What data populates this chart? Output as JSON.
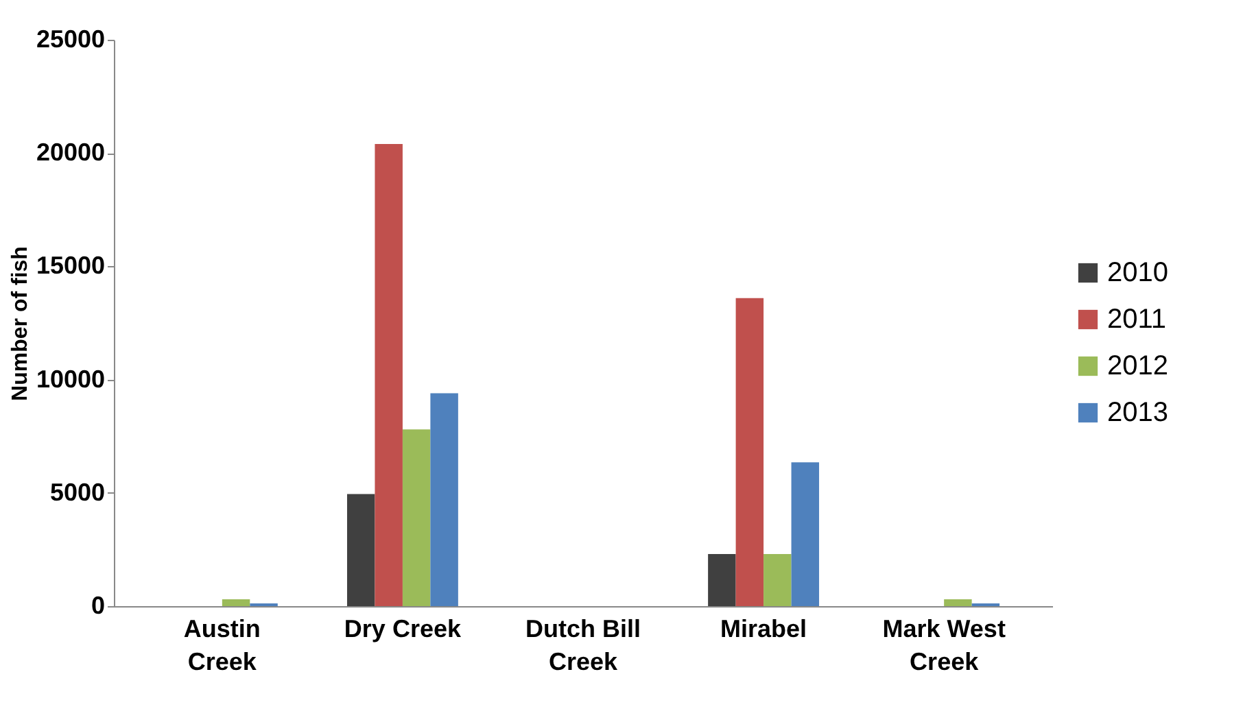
{
  "chart_data": {
    "type": "bar",
    "ylabel": "Number of fish",
    "categories": [
      "Austin Creek",
      "Dry Creek",
      "Dutch Bill Creek",
      "Mirabel",
      "Mark West Creek"
    ],
    "series": [
      {
        "name": "2010",
        "color": "#404040",
        "values": [
          0,
          4950,
          0,
          2300,
          0
        ]
      },
      {
        "name": "2011",
        "color": "#c0504d",
        "values": [
          0,
          20400,
          0,
          13600,
          0
        ]
      },
      {
        "name": "2012",
        "color": "#9bbb59",
        "values": [
          300,
          7800,
          0,
          2300,
          300
        ]
      },
      {
        "name": "2013",
        "color": "#4f81bd",
        "values": [
          120,
          9400,
          0,
          6350,
          120
        ]
      }
    ],
    "ylim": [
      0,
      25000
    ],
    "yticks": [
      0,
      5000,
      10000,
      15000,
      20000,
      25000
    ],
    "grid": false,
    "legend": "right"
  }
}
